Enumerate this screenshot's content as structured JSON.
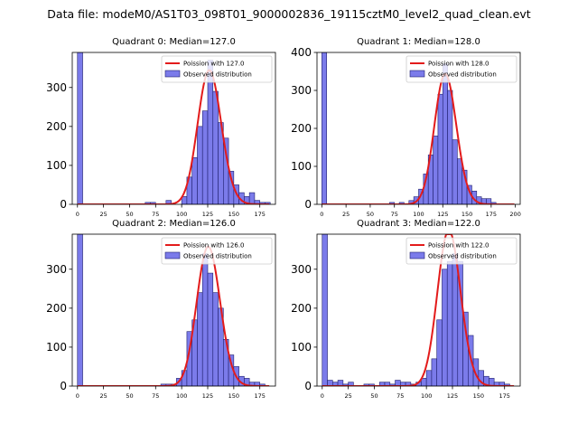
{
  "figure": {
    "suptitle": "Data file: modeM0/AS1T03_098T01_9000002836_19115cztM0_level2_quad_clean.evt",
    "colors": {
      "bars": "#7b7bea",
      "bar_edge": "#1f1f6e",
      "curve": "#e31b1b"
    }
  },
  "chart_data": [
    {
      "type": "bar",
      "title": "Quadrant 0: Median=127.0",
      "median": 127.0,
      "legend": [
        "Poission with 127.0",
        "Observed distribution"
      ],
      "legend_position": "top-right",
      "xlim": [
        -5,
        190
      ],
      "ylim": [
        0,
        390
      ],
      "xticks": [
        0,
        25,
        50,
        75,
        100,
        125,
        150,
        175
      ],
      "yticks": [
        0,
        100,
        200,
        300
      ],
      "bin_width": 5,
      "bins": [
        [
          0,
          390
        ],
        [
          65,
          5
        ],
        [
          70,
          5
        ],
        [
          85,
          10
        ],
        [
          100,
          20
        ],
        [
          105,
          70
        ],
        [
          110,
          120
        ],
        [
          115,
          200
        ],
        [
          120,
          240
        ],
        [
          125,
          370
        ],
        [
          130,
          290
        ],
        [
          135,
          210
        ],
        [
          140,
          170
        ],
        [
          145,
          85
        ],
        [
          150,
          50
        ],
        [
          155,
          30
        ],
        [
          160,
          20
        ],
        [
          165,
          30
        ],
        [
          170,
          10
        ],
        [
          175,
          5
        ],
        [
          180,
          5
        ]
      ]
    },
    {
      "type": "bar",
      "title": "Quadrant 1: Median=128.0",
      "median": 128.0,
      "legend": [
        "Poission with 128.0",
        "Observed distribution"
      ],
      "legend_position": "top-right",
      "xlim": [
        -5,
        205
      ],
      "ylim": [
        0,
        400
      ],
      "xticks": [
        0,
        25,
        50,
        75,
        100,
        125,
        150,
        175,
        200
      ],
      "yticks": [
        0,
        100,
        200,
        300,
        400
      ],
      "bin_width": 5,
      "bins": [
        [
          0,
          400
        ],
        [
          70,
          5
        ],
        [
          80,
          5
        ],
        [
          90,
          10
        ],
        [
          95,
          20
        ],
        [
          100,
          40
        ],
        [
          105,
          80
        ],
        [
          110,
          130
        ],
        [
          115,
          180
        ],
        [
          120,
          290
        ],
        [
          125,
          370
        ],
        [
          130,
          300
        ],
        [
          135,
          170
        ],
        [
          140,
          120
        ],
        [
          145,
          90
        ],
        [
          150,
          50
        ],
        [
          155,
          35
        ],
        [
          160,
          20
        ],
        [
          165,
          15
        ],
        [
          170,
          15
        ],
        [
          175,
          5
        ]
      ]
    },
    {
      "type": "bar",
      "title": "Quadrant 2: Median=126.0",
      "median": 126.0,
      "legend": [
        "Poission with 126.0",
        "Observed distribution"
      ],
      "legend_position": "top-right",
      "xlim": [
        -5,
        190
      ],
      "ylim": [
        0,
        390
      ],
      "xticks": [
        0,
        25,
        50,
        75,
        100,
        125,
        150,
        175
      ],
      "yticks": [
        0,
        100,
        200,
        300
      ],
      "bin_width": 5,
      "bins": [
        [
          0,
          390
        ],
        [
          80,
          5
        ],
        [
          85,
          5
        ],
        [
          90,
          5
        ],
        [
          95,
          20
        ],
        [
          100,
          40
        ],
        [
          105,
          140
        ],
        [
          110,
          170
        ],
        [
          115,
          240
        ],
        [
          120,
          340
        ],
        [
          125,
          290
        ],
        [
          130,
          240
        ],
        [
          135,
          200
        ],
        [
          140,
          120
        ],
        [
          145,
          80
        ],
        [
          150,
          50
        ],
        [
          155,
          25
        ],
        [
          160,
          20
        ],
        [
          165,
          10
        ],
        [
          170,
          10
        ],
        [
          175,
          5
        ]
      ]
    },
    {
      "type": "bar",
      "title": "Quadrant 3: Median=122.0",
      "median": 122.0,
      "legend": [
        "Poission with 122.0",
        "Observed distribution"
      ],
      "legend_position": "top-right",
      "xlim": [
        -5,
        190
      ],
      "ylim": [
        0,
        390
      ],
      "xticks": [
        0,
        25,
        50,
        75,
        100,
        125,
        150,
        175
      ],
      "yticks": [
        0,
        100,
        200,
        300
      ],
      "bin_width": 5,
      "bins": [
        [
          0,
          390
        ],
        [
          5,
          15
        ],
        [
          10,
          10
        ],
        [
          15,
          15
        ],
        [
          20,
          5
        ],
        [
          25,
          10
        ],
        [
          40,
          5
        ],
        [
          45,
          5
        ],
        [
          55,
          10
        ],
        [
          60,
          10
        ],
        [
          65,
          5
        ],
        [
          70,
          15
        ],
        [
          75,
          10
        ],
        [
          80,
          10
        ],
        [
          85,
          5
        ],
        [
          90,
          10
        ],
        [
          95,
          20
        ],
        [
          100,
          40
        ],
        [
          105,
          70
        ],
        [
          110,
          170
        ],
        [
          115,
          300
        ],
        [
          120,
          320
        ],
        [
          125,
          340
        ],
        [
          130,
          320
        ],
        [
          135,
          190
        ],
        [
          140,
          130
        ],
        [
          145,
          70
        ],
        [
          150,
          40
        ],
        [
          155,
          25
        ],
        [
          160,
          20
        ],
        [
          165,
          10
        ],
        [
          170,
          10
        ],
        [
          175,
          5
        ]
      ]
    }
  ]
}
